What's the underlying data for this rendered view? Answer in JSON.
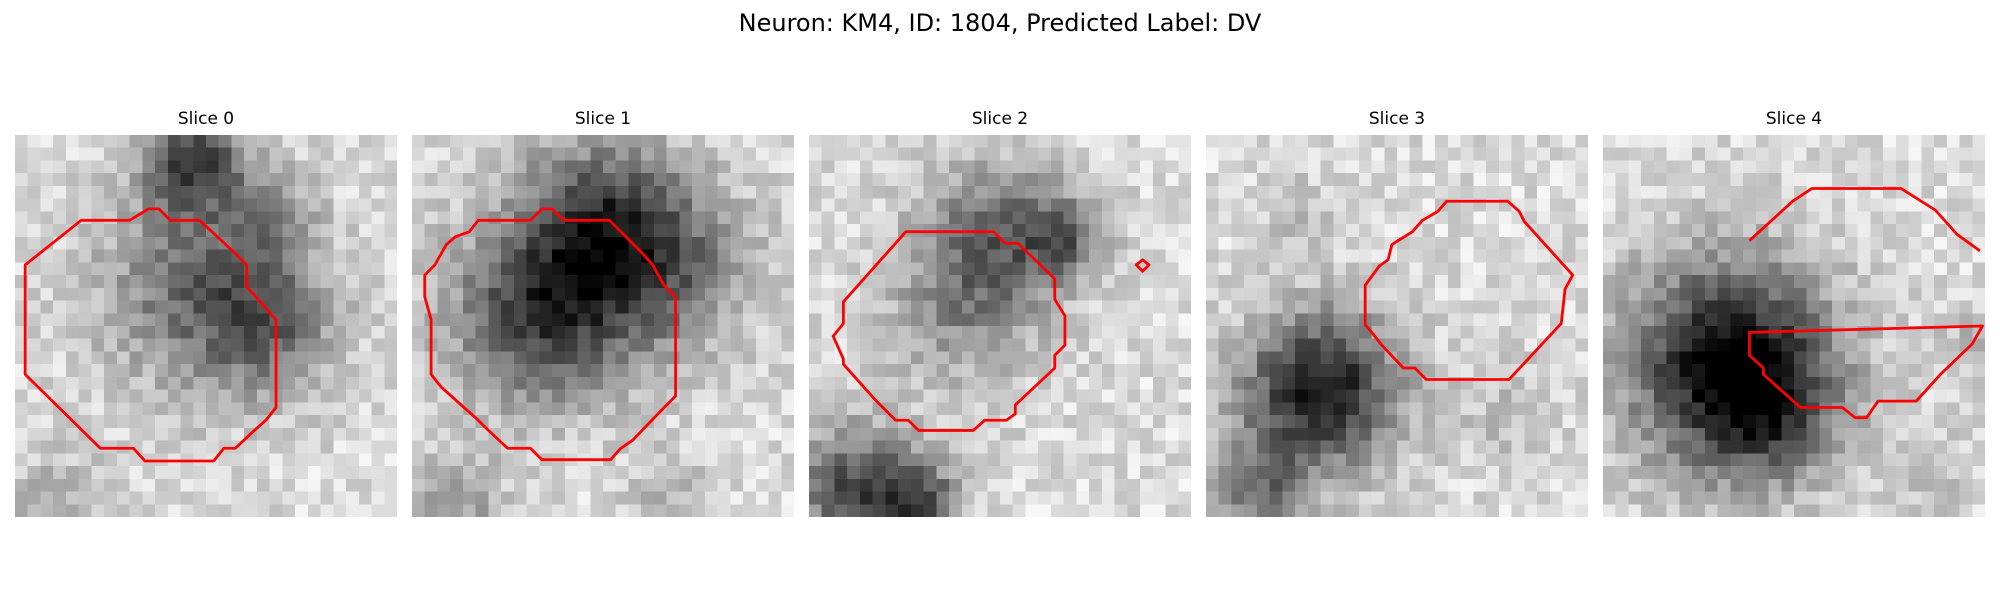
{
  "figure": {
    "title": "Neuron: KM4, ID: 1804, Predicted Label: DV"
  },
  "panels": [
    {
      "title": "Slice 0",
      "image": "grayscale microscopy patch with red segmentation contour"
    },
    {
      "title": "Slice 1",
      "image": "grayscale microscopy patch with red segmentation contour"
    },
    {
      "title": "Slice 2",
      "image": "grayscale microscopy patch with red segmentation contour"
    },
    {
      "title": "Slice 3",
      "image": "grayscale microscopy patch with red segmentation contour"
    },
    {
      "title": "Slice 4",
      "image": "grayscale microscopy patch with red segmentation contour"
    }
  ],
  "colors": {
    "contour": "#ff0000",
    "background": "#ffffff"
  }
}
